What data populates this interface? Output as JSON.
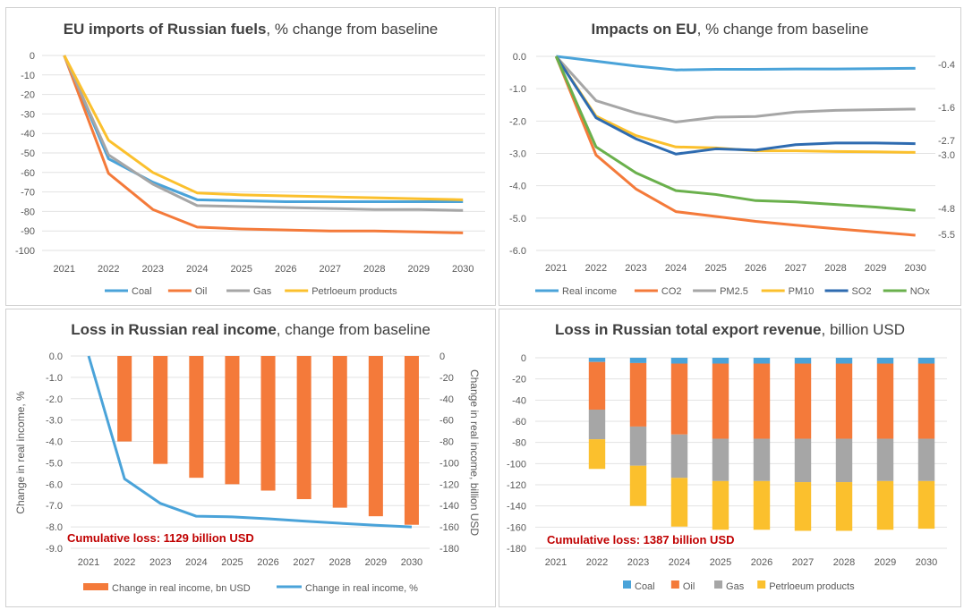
{
  "charts": [
    {
      "type": "line",
      "title_bold": "EU imports of Russian fuels",
      "title_rest": ", % change from baseline",
      "x": [
        "2021",
        "2022",
        "2023",
        "2024",
        "2025",
        "2026",
        "2027",
        "2028",
        "2029",
        "2030"
      ],
      "yticks": [
        "0",
        "-10",
        "-20",
        "-30",
        "-40",
        "-50",
        "-60",
        "-70",
        "-80",
        "-90",
        "-100"
      ],
      "ylim": [
        -100,
        0
      ],
      "series": [
        {
          "name": "Coal",
          "color": "#4aa3d9",
          "values": [
            0,
            -53,
            -65,
            -74,
            -74.5,
            -75,
            -75,
            -75,
            -75,
            -75
          ]
        },
        {
          "name": "Oil",
          "color": "#f47a3a",
          "values": [
            0,
            -60.5,
            -79,
            -88,
            -89,
            -89.5,
            -90,
            -90,
            -90.5,
            -91
          ]
        },
        {
          "name": "Gas",
          "color": "#a6a6a6",
          "values": [
            0,
            -51,
            -66,
            -77,
            -77.5,
            -78,
            -78.5,
            -79,
            -79,
            -79.5
          ]
        },
        {
          "name": "Petrloeum products",
          "color": "#fbc02d",
          "values": [
            0,
            -43.5,
            -60,
            -70.5,
            -71.5,
            -72,
            -72.5,
            -73,
            -73.5,
            -74
          ]
        }
      ]
    },
    {
      "type": "line",
      "title_bold": "Impacts on EU",
      "title_rest": ", % change from baseline",
      "x": [
        "2021",
        "2022",
        "2023",
        "2024",
        "2025",
        "2026",
        "2027",
        "2028",
        "2029",
        "2030"
      ],
      "yticks": [
        "0.0",
        "-1.0",
        "-2.0",
        "-3.0",
        "-4.0",
        "-5.0",
        "-6.0"
      ],
      "ylim": [
        -6,
        0
      ],
      "end_labels": [
        "-0.4",
        "-1.6",
        "-2.7",
        "-3.0",
        "-4.8",
        "-5.5"
      ],
      "series": [
        {
          "name": "Real income",
          "color": "#4aa3d9",
          "values": [
            0,
            -0.15,
            -0.3,
            -0.42,
            -0.4,
            -0.4,
            -0.39,
            -0.39,
            -0.38,
            -0.37
          ]
        },
        {
          "name": "CO2",
          "color": "#f47a3a",
          "values": [
            0,
            -3.05,
            -4.1,
            -4.8,
            -4.95,
            -5.1,
            -5.22,
            -5.33,
            -5.43,
            -5.53
          ]
        },
        {
          "name": "PM2.5",
          "color": "#a6a6a6",
          "values": [
            0,
            -1.37,
            -1.75,
            -2.03,
            -1.88,
            -1.86,
            -1.72,
            -1.67,
            -1.65,
            -1.63
          ]
        },
        {
          "name": "PM10",
          "color": "#fbc02d",
          "values": [
            0,
            -1.85,
            -2.45,
            -2.8,
            -2.83,
            -2.92,
            -2.92,
            -2.94,
            -2.95,
            -2.97
          ]
        },
        {
          "name": "SO2",
          "color": "#2e6bb0",
          "values": [
            0,
            -1.9,
            -2.55,
            -3.02,
            -2.86,
            -2.9,
            -2.73,
            -2.68,
            -2.68,
            -2.7
          ]
        },
        {
          "name": "NOx",
          "color": "#6ab04c",
          "values": [
            0,
            -2.8,
            -3.6,
            -4.15,
            -4.27,
            -4.46,
            -4.5,
            -4.58,
            -4.66,
            -4.76
          ]
        }
      ]
    },
    {
      "type": "bar+line",
      "title_bold": "Loss in Russian real income",
      "title_rest": ", change from baseline",
      "x": [
        "2021",
        "2022",
        "2023",
        "2024",
        "2025",
        "2026",
        "2027",
        "2028",
        "2029",
        "2030"
      ],
      "yticks_left": [
        "0.0",
        "-1.0",
        "-2.0",
        "-3.0",
        "-4.0",
        "-5.0",
        "-6.0",
        "-7.0",
        "-8.0",
        "-9.0"
      ],
      "ylim_left": [
        -9,
        0
      ],
      "yticks_right": [
        "0",
        "-20",
        "-40",
        "-60",
        "-80",
        "-100",
        "-120",
        "-140",
        "-160",
        "-180"
      ],
      "ylim_right": [
        -180,
        0
      ],
      "ylabel_left": "Change in real income, %",
      "ylabel_right": "Change in real income, billion USD",
      "annotation": "Cumulative loss: 1129 billion USD",
      "bar_series": {
        "name": "Change in real income, bn USD",
        "color": "#f47a3a",
        "values": [
          0,
          -80,
          -101,
          -114,
          -120,
          -126,
          -134,
          -142,
          -150,
          -158
        ]
      },
      "line_series": {
        "name": "Change in real income, %",
        "color": "#4aa3d9",
        "values": [
          0,
          -5.75,
          -6.9,
          -7.5,
          -7.53,
          -7.62,
          -7.73,
          -7.83,
          -7.92,
          -8.0
        ]
      }
    },
    {
      "type": "stacked bar",
      "title_bold": "Loss in Russian total export revenue",
      "title_rest": ", billion USD",
      "x": [
        "2021",
        "2022",
        "2023",
        "2024",
        "2025",
        "2026",
        "2027",
        "2028",
        "2029",
        "2030"
      ],
      "yticks": [
        "0",
        "-20",
        "-40",
        "-60",
        "-80",
        "-100",
        "-120",
        "-140",
        "-160",
        "-180"
      ],
      "ylim": [
        -180,
        0
      ],
      "annotation": "Cumulative loss: 1387 billion USD",
      "series": [
        {
          "name": "Coal",
          "color": "#4aa3d9",
          "values": [
            0,
            -4,
            -5,
            -5.5,
            -5.5,
            -5.5,
            -5.5,
            -5.5,
            -5.5,
            -5.5
          ]
        },
        {
          "name": "Oil",
          "color": "#f47a3a",
          "values": [
            0,
            -45,
            -60,
            -67,
            -71,
            -71,
            -71,
            -71,
            -71,
            -71
          ]
        },
        {
          "name": "Gas",
          "color": "#a6a6a6",
          "values": [
            0,
            -28,
            -37,
            -41,
            -40,
            -40,
            -41,
            -41,
            -40,
            -40
          ]
        },
        {
          "name": "Petrloeum products",
          "color": "#fbc02d",
          "values": [
            0,
            -28,
            -38,
            -46,
            -46,
            -46,
            -46,
            -46,
            -46,
            -45
          ]
        }
      ]
    }
  ]
}
